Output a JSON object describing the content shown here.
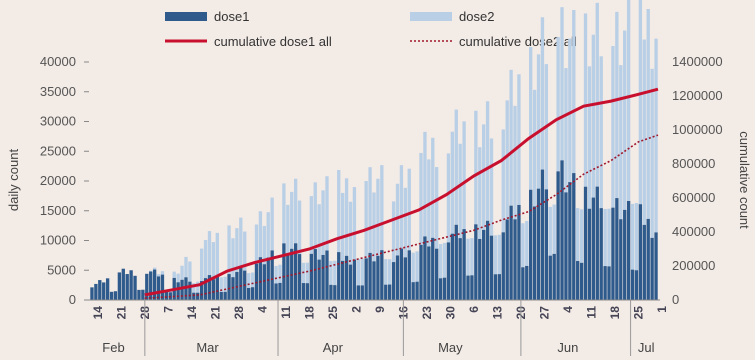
{
  "chart_data": {
    "type": "bar",
    "legend": {
      "placement": "top",
      "entries": [
        "dose1",
        "dose2",
        "cumulative dose1 all",
        "cumulative dose2 all"
      ]
    },
    "ylabel": "daily count",
    "y2label": "cumulative count",
    "ylim": [
      0,
      40000
    ],
    "y2lim": [
      0,
      1400000
    ],
    "yticks": [
      "0",
      "5000",
      "10000",
      "15000",
      "20000",
      "25000",
      "30000",
      "35000",
      "40000"
    ],
    "y2ticks": [
      "0",
      "200000",
      "400000",
      "600000",
      "800000",
      "1000000",
      "1200000",
      "1400000"
    ],
    "grid": false,
    "colors": {
      "dose1": "#2e5a8c",
      "dose2": "#b9cfe6",
      "cum1": "#c8102e",
      "cum2": "#a0182c"
    },
    "date_labels": [
      "14",
      "21",
      "28",
      "7",
      "14",
      "21",
      "28",
      "4",
      "11",
      "18",
      "25",
      "2",
      "9",
      "16",
      "23",
      "30",
      "6",
      "13",
      "20",
      "27",
      "4",
      "11",
      "18",
      "25",
      "1"
    ],
    "months": [
      "Feb",
      "Mar",
      "Apr",
      "May",
      "Jun",
      "Jul"
    ],
    "x_days": [
      0,
      145
    ],
    "weeks_dose1": [
      2500,
      4500,
      5000,
      3500,
      3500,
      4000,
      6500,
      8500,
      8000,
      7000,
      7000,
      7500,
      9000,
      11000,
      12000,
      12500,
      17000,
      23000,
      17000,
      16000,
      14000,
      10000,
      5000,
      7500,
      9000,
      8000
    ],
    "weeks_dose2": [
      0,
      0,
      0,
      1000,
      6000,
      7500,
      7000,
      9000,
      10000,
      12000,
      13000,
      12000,
      15000,
      17000,
      18000,
      19000,
      22000,
      24000,
      26000,
      28000,
      33000,
      34000,
      30000,
      34000,
      35000,
      33000
    ],
    "cumulative_dose1": {
      "days": [
        14,
        21,
        28,
        35,
        42,
        49,
        56,
        63,
        70,
        77,
        84,
        91,
        98,
        105,
        112,
        119,
        126,
        133,
        140,
        145
      ],
      "values": [
        30000,
        60000,
        90000,
        170000,
        220000,
        260000,
        300000,
        360000,
        410000,
        470000,
        530000,
        620000,
        730000,
        820000,
        950000,
        1060000,
        1140000,
        1170000,
        1210000,
        1240000
      ]
    },
    "cumulative_dose2": {
      "days": [
        14,
        28,
        42,
        56,
        70,
        84,
        98,
        105,
        112,
        119,
        126,
        133,
        140,
        145
      ],
      "values": [
        10000,
        30000,
        100000,
        170000,
        250000,
        330000,
        410000,
        470000,
        520000,
        620000,
        740000,
        820000,
        930000,
        970000
      ]
    }
  }
}
